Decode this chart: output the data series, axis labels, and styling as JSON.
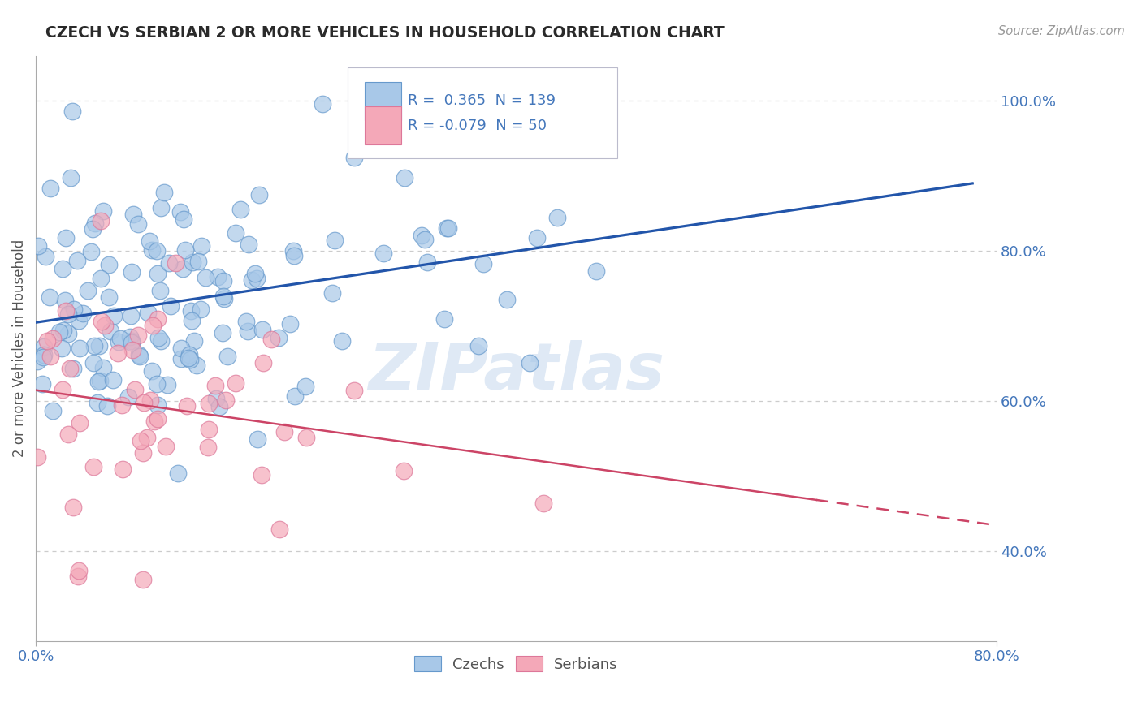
{
  "title": "CZECH VS SERBIAN 2 OR MORE VEHICLES IN HOUSEHOLD CORRELATION CHART",
  "source_text": "Source: ZipAtlas.com",
  "ylabel": "2 or more Vehicles in Household",
  "xlim": [
    0.0,
    0.8
  ],
  "ylim": [
    0.28,
    1.06
  ],
  "yticks": [
    0.4,
    0.6,
    0.8,
    1.0
  ],
  "czech_color": "#a8c8e8",
  "serbian_color": "#f4a8b8",
  "czech_edge": "#6699cc",
  "serbian_edge": "#dd7799",
  "trend_czech_color": "#2255aa",
  "trend_serbian_color": "#cc4466",
  "R_czech": 0.365,
  "N_czech": 139,
  "R_serbian": -0.079,
  "N_serbian": 50,
  "grid_color": "#cccccc",
  "background_color": "#ffffff",
  "title_color": "#2a2a2a",
  "axis_label_color": "#555555",
  "tick_label_color": "#4477bb",
  "watermark_color": "#c5d8ee",
  "legend_box_color": "#f0f4ff",
  "legend_border_color": "#bbbbcc"
}
